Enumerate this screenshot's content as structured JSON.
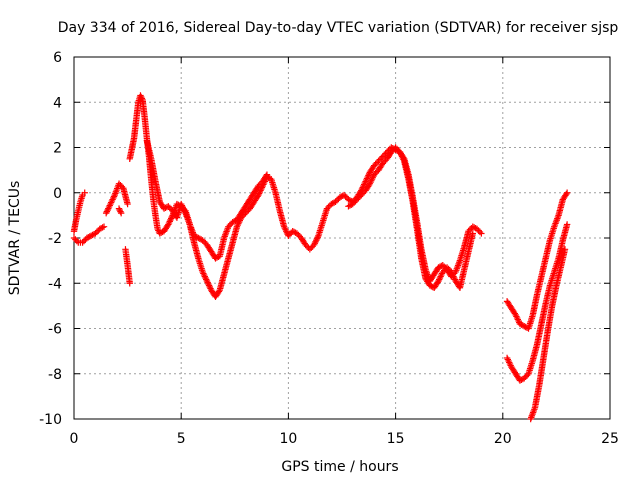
{
  "chart_data": {
    "type": "scatter",
    "title": "Day 334 of 2016, Sidereal Day-to-day VTEC variation (SDTVAR) for receiver sjsp",
    "xlabel": "GPS time / hours",
    "ylabel": "SDTVAR / TECUs",
    "xlim": [
      0,
      25
    ],
    "ylim": [
      -10,
      6
    ],
    "x_ticks": [
      "0",
      "5",
      "10",
      "15",
      "20",
      "25"
    ],
    "y_ticks": [
      "-10",
      "-8",
      "-6",
      "-4",
      "-2",
      "0",
      "2",
      "4",
      "6"
    ],
    "grid": true,
    "marker": "+",
    "color": "#ff0000",
    "series": [
      {
        "points": [
          [
            0.0,
            -1.7
          ],
          [
            0.1,
            -1.2
          ],
          [
            0.2,
            -0.8
          ],
          [
            0.3,
            -0.4
          ],
          [
            0.4,
            -0.1
          ],
          [
            0.5,
            0.0
          ]
        ]
      },
      {
        "points": [
          [
            0.0,
            -2.0
          ],
          [
            0.2,
            -2.2
          ],
          [
            0.4,
            -2.2
          ],
          [
            0.6,
            -2.0
          ],
          [
            0.8,
            -1.9
          ],
          [
            1.0,
            -1.8
          ],
          [
            1.2,
            -1.6
          ],
          [
            1.4,
            -1.5
          ]
        ]
      },
      {
        "points": [
          [
            1.5,
            -0.9
          ],
          [
            1.7,
            -0.5
          ],
          [
            1.9,
            -0.1
          ],
          [
            2.1,
            0.4
          ],
          [
            2.3,
            0.2
          ],
          [
            2.5,
            -0.5
          ]
        ]
      },
      {
        "points": [
          [
            2.1,
            -0.7
          ],
          [
            2.2,
            -0.9
          ]
        ]
      },
      {
        "points": [
          [
            2.4,
            -2.5
          ],
          [
            2.5,
            -3.2
          ],
          [
            2.6,
            -4.0
          ]
        ]
      },
      {
        "points": [
          [
            2.6,
            1.5
          ],
          [
            2.8,
            2.4
          ],
          [
            2.9,
            3.2
          ],
          [
            3.0,
            4.0
          ],
          [
            3.1,
            4.3
          ],
          [
            3.2,
            4.1
          ],
          [
            3.3,
            3.3
          ],
          [
            3.4,
            2.4
          ],
          [
            3.5,
            1.6
          ],
          [
            3.6,
            0.6
          ],
          [
            3.7,
            -0.3
          ],
          [
            3.8,
            -1.0
          ],
          [
            3.9,
            -1.6
          ],
          [
            4.0,
            -1.8
          ],
          [
            4.2,
            -1.7
          ],
          [
            4.4,
            -1.4
          ],
          [
            4.6,
            -1.0
          ],
          [
            4.8,
            -0.5
          ],
          [
            5.0,
            -0.6
          ],
          [
            5.2,
            -0.8
          ],
          [
            5.4,
            -1.4
          ],
          [
            5.6,
            -2.2
          ],
          [
            5.8,
            -2.9
          ],
          [
            6.0,
            -3.5
          ],
          [
            6.2,
            -3.9
          ],
          [
            6.4,
            -4.3
          ],
          [
            6.6,
            -4.6
          ],
          [
            6.8,
            -4.3
          ],
          [
            7.0,
            -3.6
          ],
          [
            7.2,
            -2.9
          ],
          [
            7.4,
            -2.2
          ],
          [
            7.6,
            -1.5
          ],
          [
            7.8,
            -1.1
          ],
          [
            8.0,
            -0.9
          ],
          [
            8.2,
            -0.7
          ],
          [
            8.4,
            -0.4
          ],
          [
            8.6,
            -0.1
          ],
          [
            8.8,
            0.3
          ],
          [
            9.0,
            0.7
          ],
          [
            9.2,
            0.6
          ],
          [
            9.4,
            0.0
          ],
          [
            9.6,
            -0.8
          ],
          [
            9.8,
            -1.5
          ],
          [
            10.0,
            -1.9
          ],
          [
            10.2,
            -1.7
          ],
          [
            10.4,
            -1.8
          ],
          [
            10.6,
            -2.0
          ],
          [
            10.8,
            -2.3
          ],
          [
            11.0,
            -2.5
          ],
          [
            11.2,
            -2.3
          ],
          [
            11.4,
            -1.9
          ],
          [
            11.6,
            -1.3
          ],
          [
            11.8,
            -0.7
          ],
          [
            12.0,
            -0.5
          ],
          [
            12.2,
            -0.4
          ],
          [
            12.4,
            -0.2
          ],
          [
            12.6,
            -0.1
          ],
          [
            12.8,
            -0.3
          ],
          [
            13.0,
            -0.4
          ],
          [
            13.2,
            -0.2
          ],
          [
            13.4,
            0.1
          ],
          [
            13.6,
            0.5
          ],
          [
            13.8,
            0.9
          ],
          [
            14.0,
            1.2
          ],
          [
            14.2,
            1.4
          ],
          [
            14.4,
            1.6
          ],
          [
            14.6,
            1.8
          ],
          [
            14.8,
            2.0
          ],
          [
            15.0,
            1.9
          ],
          [
            15.2,
            1.8
          ],
          [
            15.4,
            1.5
          ],
          [
            15.6,
            0.8
          ],
          [
            15.8,
            -0.2
          ],
          [
            16.0,
            -1.3
          ],
          [
            16.2,
            -2.5
          ],
          [
            16.4,
            -3.4
          ],
          [
            16.6,
            -3.9
          ],
          [
            16.8,
            -3.6
          ],
          [
            17.0,
            -3.3
          ],
          [
            17.2,
            -3.2
          ],
          [
            17.4,
            -3.4
          ],
          [
            17.6,
            -3.7
          ],
          [
            17.8,
            -3.5
          ],
          [
            18.0,
            -3.0
          ],
          [
            18.2,
            -2.4
          ],
          [
            18.4,
            -1.7
          ],
          [
            18.6,
            -1.5
          ],
          [
            18.8,
            -1.6
          ],
          [
            19.0,
            -1.8
          ]
        ]
      },
      {
        "points": [
          [
            3.4,
            2.3
          ],
          [
            3.6,
            1.5
          ],
          [
            3.8,
            0.5
          ],
          [
            4.0,
            -0.4
          ],
          [
            4.2,
            -0.7
          ],
          [
            4.4,
            -0.6
          ],
          [
            4.6,
            -0.8
          ],
          [
            4.8,
            -1.1
          ],
          [
            5.0,
            -0.5
          ],
          [
            5.2,
            -0.9
          ],
          [
            5.4,
            -1.4
          ],
          [
            5.6,
            -1.9
          ],
          [
            5.8,
            -2.0
          ],
          [
            6.0,
            -2.1
          ],
          [
            6.2,
            -2.3
          ],
          [
            6.4,
            -2.6
          ],
          [
            6.6,
            -2.9
          ],
          [
            6.8,
            -2.8
          ],
          [
            7.0,
            -2.0
          ],
          [
            7.2,
            -1.5
          ],
          [
            7.4,
            -1.3
          ],
          [
            7.6,
            -1.2
          ],
          [
            7.8,
            -0.9
          ],
          [
            8.0,
            -0.6
          ],
          [
            8.2,
            -0.3
          ],
          [
            8.4,
            0.0
          ],
          [
            8.6,
            0.3
          ],
          [
            8.8,
            0.5
          ],
          [
            9.0,
            0.8
          ]
        ]
      },
      {
        "points": [
          [
            12.8,
            -0.6
          ],
          [
            13.0,
            -0.5
          ],
          [
            13.2,
            -0.3
          ],
          [
            13.4,
            -0.1
          ],
          [
            13.6,
            0.1
          ],
          [
            13.8,
            0.4
          ],
          [
            14.0,
            0.8
          ],
          [
            14.2,
            1.0
          ],
          [
            14.4,
            1.3
          ],
          [
            14.6,
            1.5
          ],
          [
            14.8,
            1.8
          ],
          [
            15.0,
            2.0
          ],
          [
            15.2,
            1.8
          ],
          [
            15.4,
            1.4
          ],
          [
            15.6,
            0.6
          ],
          [
            15.8,
            -0.4
          ],
          [
            16.0,
            -1.6
          ],
          [
            16.2,
            -2.9
          ],
          [
            16.4,
            -3.8
          ],
          [
            16.6,
            -4.1
          ],
          [
            16.8,
            -4.2
          ],
          [
            17.0,
            -3.9
          ],
          [
            17.2,
            -3.5
          ],
          [
            17.4,
            -3.3
          ],
          [
            17.6,
            -3.5
          ],
          [
            17.8,
            -3.9
          ],
          [
            18.0,
            -4.2
          ],
          [
            18.2,
            -3.4
          ],
          [
            18.4,
            -2.6
          ],
          [
            18.6,
            -1.8
          ]
        ]
      },
      {
        "points": [
          [
            20.2,
            -4.8
          ],
          [
            20.4,
            -5.1
          ],
          [
            20.6,
            -5.4
          ],
          [
            20.8,
            -5.8
          ],
          [
            21.0,
            -5.9
          ],
          [
            21.2,
            -6.0
          ],
          [
            21.4,
            -5.4
          ],
          [
            21.6,
            -4.5
          ],
          [
            21.8,
            -3.7
          ],
          [
            22.0,
            -2.9
          ],
          [
            22.2,
            -2.1
          ],
          [
            22.4,
            -1.5
          ],
          [
            22.6,
            -1.0
          ],
          [
            22.8,
            -0.3
          ],
          [
            23.0,
            0.0
          ]
        ]
      },
      {
        "points": [
          [
            20.2,
            -7.3
          ],
          [
            20.4,
            -7.7
          ],
          [
            20.6,
            -8.0
          ],
          [
            20.8,
            -8.3
          ],
          [
            21.0,
            -8.2
          ],
          [
            21.2,
            -8.0
          ],
          [
            21.4,
            -7.4
          ],
          [
            21.6,
            -6.7
          ],
          [
            21.8,
            -5.8
          ],
          [
            22.0,
            -4.9
          ],
          [
            22.2,
            -4.1
          ],
          [
            22.4,
            -3.5
          ],
          [
            22.6,
            -2.9
          ],
          [
            22.8,
            -2.1
          ],
          [
            23.0,
            -1.4
          ]
        ]
      },
      {
        "points": [
          [
            21.3,
            -10.0
          ],
          [
            21.5,
            -9.5
          ],
          [
            21.7,
            -8.5
          ],
          [
            21.9,
            -7.3
          ],
          [
            22.1,
            -6.1
          ],
          [
            22.3,
            -5.0
          ],
          [
            22.5,
            -4.1
          ],
          [
            22.7,
            -3.3
          ],
          [
            22.9,
            -2.5
          ]
        ]
      }
    ]
  }
}
